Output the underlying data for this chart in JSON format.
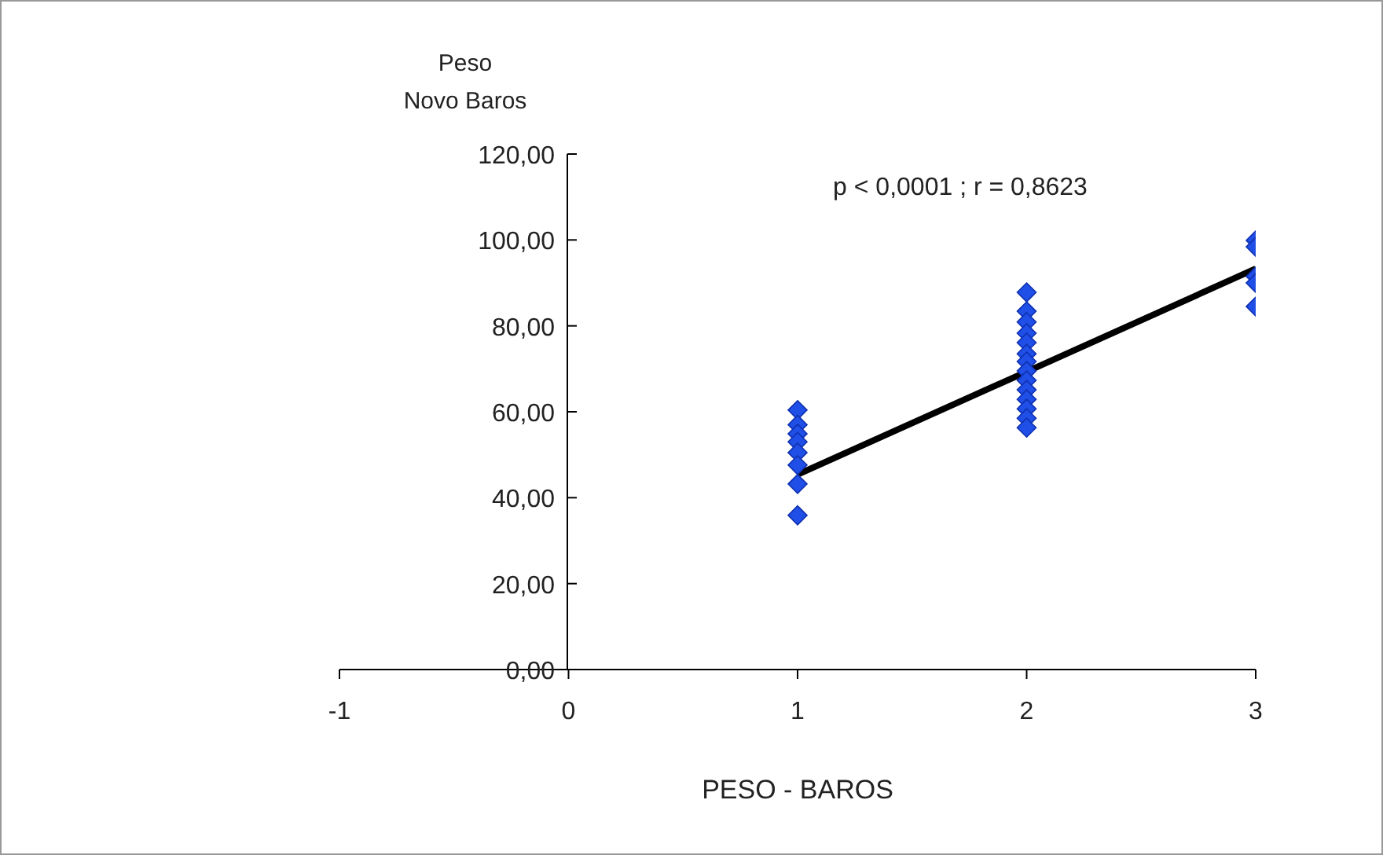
{
  "chart_data": {
    "type": "scatter",
    "ylabel": "Peso\nNovo Baros",
    "xlabel": "PESO - BAROS",
    "annotations": [
      "p < 0,0001 ; r = 0,8623"
    ],
    "xlim": [
      -1,
      3
    ],
    "xticks": [
      -1,
      0,
      1,
      2,
      3
    ],
    "ylim": [
      0,
      120
    ],
    "yticks": [
      {
        "value": 0,
        "label": "0,00"
      },
      {
        "value": 20,
        "label": "20,00"
      },
      {
        "value": 40,
        "label": "40,00"
      },
      {
        "value": 60,
        "label": "60,00"
      },
      {
        "value": 80,
        "label": "80,00"
      },
      {
        "value": 100,
        "label": "100,00"
      },
      {
        "value": 120,
        "label": "120,00"
      }
    ],
    "marker": "diamond",
    "series": [
      {
        "type": "line",
        "color": "#000000",
        "marker": "none",
        "line_style": "solid",
        "x": [
          1,
          3
        ],
        "values": [
          45.4,
          93.3
        ]
      },
      {
        "type": "scatter",
        "color": "#1f4fe6",
        "x": [
          1,
          1,
          1,
          1,
          1,
          1,
          1,
          1,
          2,
          2,
          2,
          2,
          2,
          2,
          2,
          2,
          2,
          2,
          2,
          2,
          2,
          2,
          3,
          3,
          3,
          3,
          3
        ],
        "values": [
          60.4,
          57,
          54.9,
          53,
          50.5,
          47.6,
          43.2,
          35.9,
          87.8,
          83.4,
          80.9,
          78.3,
          76.1,
          73.5,
          71.7,
          69.5,
          67.3,
          65.1,
          62.9,
          60.7,
          58.5,
          56.3,
          99.9,
          98.4,
          91.5,
          90,
          84.5
        ]
      }
    ]
  }
}
